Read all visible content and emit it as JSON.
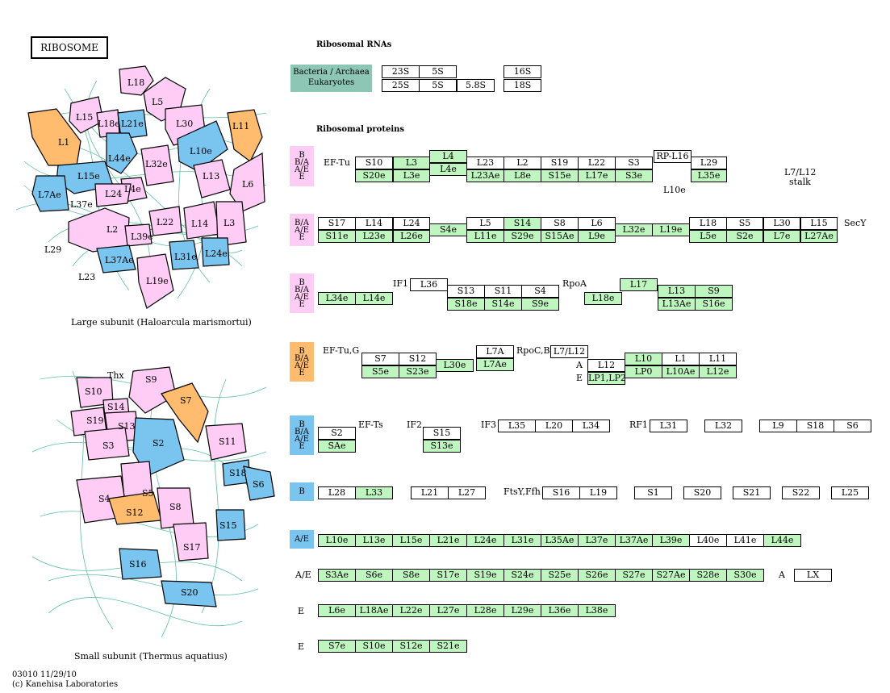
{
  "title": "RIBOSOME",
  "colors": {
    "green": "#bff5bf",
    "pink": "#ffccf5",
    "orange": "#ffbb6e",
    "blue": "#7ac4f0",
    "teal": "#8ec6b6"
  },
  "headers": {
    "rna": "Ribosomal RNAs",
    "proteins": "Ribosomal proteins"
  },
  "rna_legend": {
    "line1": "Bacteria / Archaea",
    "line2": "Eukaryotes"
  },
  "large_subunit": {
    "caption": "Large subunit (Haloarcula marismortui)",
    "labels": [
      "L18",
      "L5",
      "L15",
      "L18e",
      "L21e",
      "L30",
      "L11",
      "L1",
      "L44e",
      "L10e",
      "L32e",
      "L15e",
      "L13",
      "L4e",
      "L6",
      "L7Ae",
      "L37e",
      "L24",
      "L22",
      "L14",
      "L3",
      "L2",
      "L39e",
      "L29",
      "L37Ae",
      "L31e",
      "L24e",
      "L23",
      "L19e"
    ]
  },
  "small_subunit": {
    "caption": "Small subunit (Thermus aquatius)",
    "labels": [
      "Thx",
      "S9",
      "S10",
      "S14",
      "S7",
      "S19",
      "S13",
      "S3",
      "S2",
      "S11",
      "S18",
      "S6",
      "S5",
      "S4",
      "S12",
      "S8",
      "S15",
      "S17",
      "S16",
      "S20"
    ]
  },
  "footer": {
    "line1": "03010 11/29/10",
    "line2": "(c) Kanehisa Laboratories"
  },
  "cats": {
    "c1": [
      "B",
      "B/A",
      "A/E",
      "E"
    ],
    "c2": [
      "B/A",
      "A/E",
      "E"
    ],
    "c3": [
      "B",
      "B/A",
      "A/E",
      "E"
    ],
    "c4": [
      "B",
      "B/A",
      "A/E",
      "E"
    ],
    "c5": [
      "B",
      "B/A",
      "A/E",
      "E"
    ],
    "c6": [
      "B"
    ],
    "c7": [
      "A/E"
    ]
  },
  "texts": {
    "eftu": "EF-Tu",
    "rpl16": "RP-L16",
    "l10e_note": "L10e",
    "l7l12_stalk_1": "L7/L12",
    "l7l12_stalk_2": "stalk",
    "secy": "SecY",
    "if1": "IF1",
    "rpoa": "RpoA",
    "eftug": "EF-Tu,G",
    "rpocb": "RpoC,B",
    "a_lbl": "A",
    "e_lbl": "E",
    "efts": "EF-Ts",
    "if2": "IF2",
    "if3": "IF3",
    "rf1": "RF1",
    "ftsy": "FtsY,Ffh",
    "r8_lbl": "A/E",
    "r8_a": "A",
    "r9_lbl": "E",
    "r10_lbl": "E"
  },
  "rna_boxes": [
    "23S",
    "5S",
    "16S",
    "25S",
    "5S",
    "5.8S",
    "18S"
  ],
  "boxes": [
    "S10",
    "L3",
    "L4",
    "L23",
    "L2",
    "S19",
    "L22",
    "S3",
    "L29",
    "S20e",
    "L3e",
    "L4e",
    "L23Ae",
    "L8e",
    "S15e",
    "L17e",
    "S3e",
    "L35e",
    "S17",
    "L14",
    "L24",
    "L5",
    "S14",
    "S8",
    "L6",
    "L18",
    "S5",
    "L30",
    "L15",
    "S11e",
    "L23e",
    "L26e",
    "S4e",
    "L11e",
    "S29e",
    "S15Ae",
    "L9e",
    "L32e",
    "L19e",
    "L5e",
    "S2e",
    "L7e",
    "L27Ae",
    "L36",
    "S13",
    "S11",
    "S4",
    "L17",
    "L13",
    "S9",
    "L34e",
    "L14e",
    "S18e",
    "S14e",
    "S9e",
    "L18e",
    "L13Ae",
    "S16e",
    "L7A",
    "S7",
    "S12",
    "L7/L12",
    "L12",
    "L10",
    "L1",
    "L11",
    "S5e",
    "S23e",
    "L30e",
    "L7Ae",
    "LP1,LP2",
    "LP0",
    "L10Ae",
    "L12e",
    "S2",
    "S15",
    "L35",
    "L20",
    "L34",
    "L31",
    "L32",
    "L9",
    "S18",
    "S6",
    "SAe",
    "S13e",
    "L28",
    "L33",
    "L21",
    "L27",
    "S16",
    "L19",
    "S1",
    "S20",
    "S21",
    "S22",
    "L25",
    "L10e",
    "L13e",
    "L15e",
    "L21e",
    "L24e",
    "L31e",
    "L35Ae",
    "L37e",
    "L37Ae",
    "L39e",
    "L40e",
    "L41e",
    "L44e",
    "S3Ae",
    "S6e",
    "S8e",
    "S17e",
    "S19e",
    "S24e",
    "S25e",
    "S26e",
    "S27e",
    "S27Ae",
    "S28e",
    "S30e",
    "LX",
    "L6e",
    "L18Ae",
    "L22e",
    "L27e",
    "L28e",
    "L29e",
    "L36e",
    "L38e",
    "S7e",
    "S10e",
    "S12e",
    "S21e"
  ]
}
